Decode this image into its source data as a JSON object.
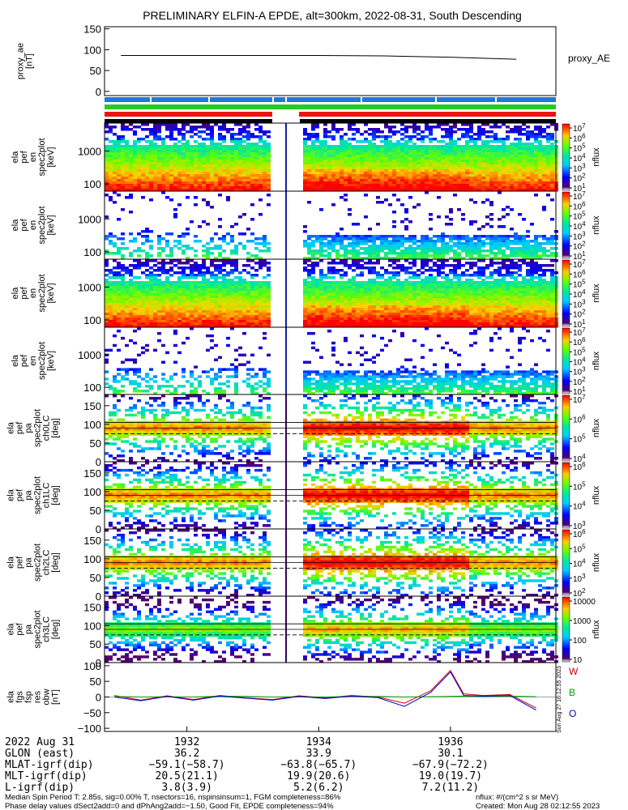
{
  "title": "PRELIMINARY ELFIN-A EPDE, alt=300km, 2022-08-31, South Descending",
  "colors": {
    "w": "#d00000",
    "b": "#00a000",
    "o": "#0000cc",
    "blue_bar": "#1e7ad8",
    "green_bar": "#22cc22",
    "red_bar": "#ee1111"
  },
  "panels": [
    {
      "id": "proxy_ae",
      "ylabel": [
        "proxy_ae",
        "[nT]"
      ],
      "yticks": [
        "150",
        "100",
        "50",
        "0"
      ],
      "right_label": "proxy_AE"
    },
    {
      "id": "pef_en_1",
      "ylabel": [
        "ela",
        "pef",
        "en",
        "spec2plot",
        "[keV]"
      ],
      "yticks": [
        "1000",
        "100"
      ],
      "cb_ticks": [
        "10^7",
        "10^6",
        "10^5",
        "10^4",
        "10^3",
        "10^2",
        "10^1"
      ],
      "cb_label": "nflux"
    },
    {
      "id": "pef_en_2",
      "ylabel": [
        "ela",
        "pef",
        "en",
        "spec2plot",
        "[keV]"
      ],
      "yticks": [
        "1000",
        "100"
      ],
      "cb_ticks": [
        "10^7",
        "10^6",
        "10^5",
        "10^4",
        "10^3",
        "10^2",
        "10^1"
      ],
      "cb_label": "nflux"
    },
    {
      "id": "pef_en_3",
      "ylabel": [
        "ela",
        "pef",
        "en",
        "spec2plot",
        "[keV]"
      ],
      "yticks": [
        "1000",
        "100"
      ],
      "cb_ticks": [
        "10^7",
        "10^6",
        "10^5",
        "10^4",
        "10^3",
        "10^2",
        "10^1"
      ],
      "cb_label": "nflux"
    },
    {
      "id": "pef_en_4",
      "ylabel": [
        "ela",
        "pef",
        "en",
        "spec2plot",
        "[keV]"
      ],
      "yticks": [
        "1000",
        "100"
      ],
      "cb_ticks": [
        "10^7",
        "10^6",
        "10^5",
        "10^4",
        "10^3",
        "10^2",
        "10^1"
      ],
      "cb_label": "nflux"
    },
    {
      "id": "pa_ch0",
      "ylabel": [
        "ela",
        "pef",
        "pa",
        "spec2plot",
        "ch0LC",
        "[deg]"
      ],
      "yticks": [
        "150",
        "100",
        "50",
        "0"
      ],
      "cb_ticks": [
        "10^7",
        "10^6",
        "10^5",
        "10^4"
      ],
      "cb_label": "nflux"
    },
    {
      "id": "pa_ch1",
      "ylabel": [
        "ela",
        "pef",
        "pa",
        "spec2plot",
        "ch1LC",
        "[deg]"
      ],
      "yticks": [
        "150",
        "100",
        "50",
        "0"
      ],
      "cb_ticks": [
        "10^6",
        "10^5",
        "10^4",
        "10^3"
      ],
      "cb_label": "nflux"
    },
    {
      "id": "pa_ch2",
      "ylabel": [
        "ela",
        "pef",
        "pa",
        "spec2plot",
        "ch2LC",
        "[deg]"
      ],
      "yticks": [
        "150",
        "100",
        "50",
        "0"
      ],
      "cb_ticks": [
        "10^6",
        "10^5",
        "10^4",
        "10^3",
        "10^2"
      ],
      "cb_label": "nflux"
    },
    {
      "id": "pa_ch3",
      "ylabel": [
        "ela",
        "pef",
        "pa",
        "spec2plot",
        "ch3LC",
        "[deg]"
      ],
      "yticks": [
        "150",
        "100",
        "50",
        "0"
      ],
      "cb_ticks": [
        "10000",
        "1000",
        "100",
        "10"
      ],
      "cb_label": "nflux"
    },
    {
      "id": "fgs",
      "ylabel": [
        "ela",
        "fgs",
        "fsp",
        "res",
        "obw",
        "[nT]"
      ],
      "yticks": [
        "100",
        "50",
        "0",
        "-50",
        "-100"
      ],
      "legend": [
        "W",
        "B",
        "O"
      ]
    }
  ],
  "xaxis": {
    "rows": [
      {
        "label": "2022 Aug 31",
        "values": [
          "1932",
          "1934",
          "1936"
        ]
      },
      {
        "label": "GLON (east)",
        "values": [
          "36.2",
          "33.9",
          "30.1"
        ]
      },
      {
        "label": "MLAT-igrf(dip)",
        "values": [
          "−59.1(−58.7)",
          "−63.8(−65.7)",
          "−67.9(−72.2)"
        ]
      },
      {
        "label": "MLT-igrf(dip)",
        "values": [
          "20.5(21.1)",
          "19.9(20.6)",
          "19.0(19.7)"
        ]
      },
      {
        "label": "L-igrf(dip)",
        "values": [
          "3.8(3.9)",
          "5.2(6.2)",
          "7.2(11.2)"
        ]
      }
    ]
  },
  "side_note": "Sun Aug 27 16:12:55 2023",
  "footer": {
    "line1": "Median Spin Period T: 2.85s, sig=0.00% T, nsectors=16, nspinsinsum=1, FGM completeness=86%",
    "line2": "Phase delay values dSect2add=0 and dPhAng2add=−1.50, Good Fit, EPDE completeness=94%",
    "right1": "nflux: #/(cm^2 s sr MeV)",
    "right2": "Created: Mon Aug 28 02:12:55 2023"
  },
  "chart_data": [
    {
      "type": "line",
      "title": "PRELIMINARY ELFIN-A EPDE, alt=300km, 2022-08-31, South Descending",
      "ylabel": "proxy_ae [nT]",
      "ylim": [
        -10,
        155
      ],
      "series": [
        {
          "name": "proxy_AE",
          "x": [
            1931.0,
            1932.0,
            1933.0,
            1934.0,
            1935.0,
            1936.0,
            1937.0
          ],
          "values": [
            86,
            86,
            86,
            86,
            85,
            82,
            77
          ]
        }
      ]
    },
    {
      "type": "heatmap",
      "ylabel": "ela pef en spec2plot [keV]",
      "ylog": true,
      "ylim": [
        60,
        7000
      ],
      "colorbar_label": "nflux",
      "zlog": true,
      "zlim": [
        10,
        10000000
      ],
      "peak_band_keV": [
        60,
        1500
      ]
    },
    {
      "type": "heatmap",
      "ylabel": "ela pef en spec2plot [keV]",
      "ylog": true,
      "ylim": [
        60,
        7000
      ],
      "colorbar_label": "nflux",
      "zlog": true,
      "zlim": [
        10,
        10000000
      ],
      "peak_band_keV": [
        60,
        200
      ]
    },
    {
      "type": "heatmap",
      "ylabel": "ela pef en spec2plot [keV]",
      "ylog": true,
      "ylim": [
        60,
        7000
      ],
      "colorbar_label": "nflux",
      "zlog": true,
      "zlim": [
        10,
        10000000
      ],
      "peak_band_keV": [
        60,
        1500
      ]
    },
    {
      "type": "heatmap",
      "ylabel": "ela pef en spec2plot [keV]",
      "ylog": true,
      "ylim": [
        60,
        7000
      ],
      "colorbar_label": "nflux",
      "zlog": true,
      "zlim": [
        10,
        10000000
      ],
      "peak_band_keV": [
        60,
        200
      ]
    },
    {
      "type": "heatmap",
      "ylabel": "ela pef pa spec2plot ch0LC [deg]",
      "ylim": [
        0,
        180
      ],
      "colorbar_label": "nflux",
      "zlog": true,
      "zlim": [
        5000,
        10000000
      ],
      "loss_cone_lines_deg": [
        75,
        90,
        105
      ]
    },
    {
      "type": "heatmap",
      "ylabel": "ela pef pa spec2plot ch1LC [deg]",
      "ylim": [
        0,
        180
      ],
      "colorbar_label": "nflux",
      "zlog": true,
      "zlim": [
        500,
        2000000
      ],
      "loss_cone_lines_deg": [
        75,
        90,
        105
      ]
    },
    {
      "type": "heatmap",
      "ylabel": "ela pef pa spec2plot ch2LC [deg]",
      "ylim": [
        0,
        180
      ],
      "colorbar_label": "nflux",
      "zlog": true,
      "zlim": [
        50,
        2000000
      ],
      "loss_cone_lines_deg": [
        75,
        90,
        105
      ]
    },
    {
      "type": "heatmap",
      "ylabel": "ela pef pa spec2plot ch3LC [deg]",
      "ylim": [
        0,
        180
      ],
      "colorbar_label": "nflux",
      "zlog": true,
      "zlim": [
        10,
        10000
      ],
      "loss_cone_lines_deg": [
        75,
        90,
        105
      ]
    },
    {
      "type": "line",
      "ylabel": "ela fgs fsp res obw [nT]",
      "ylim": [
        -110,
        110
      ],
      "x": [
        1930.9,
        1931.3,
        1931.7,
        1932.1,
        1932.5,
        1932.9,
        1933.3,
        1933.7,
        1934.1,
        1934.5,
        1934.9,
        1935.3,
        1935.7,
        1936.0,
        1936.2,
        1936.5,
        1936.9,
        1937.3
      ],
      "series": [
        {
          "name": "W",
          "values": [
            5,
            -10,
            4,
            -8,
            5,
            -3,
            -8,
            4,
            -3,
            5,
            0,
            -20,
            20,
            85,
            10,
            5,
            8,
            -35
          ]
        },
        {
          "name": "B",
          "values": [
            2,
            0,
            1,
            0,
            3,
            2,
            0,
            1,
            0,
            2,
            2,
            0,
            1,
            2,
            3,
            2,
            3,
            1
          ]
        },
        {
          "name": "O",
          "values": [
            0,
            -12,
            2,
            -10,
            3,
            -4,
            -10,
            2,
            -5,
            3,
            -2,
            -30,
            15,
            80,
            5,
            3,
            5,
            -42
          ]
        }
      ]
    }
  ]
}
